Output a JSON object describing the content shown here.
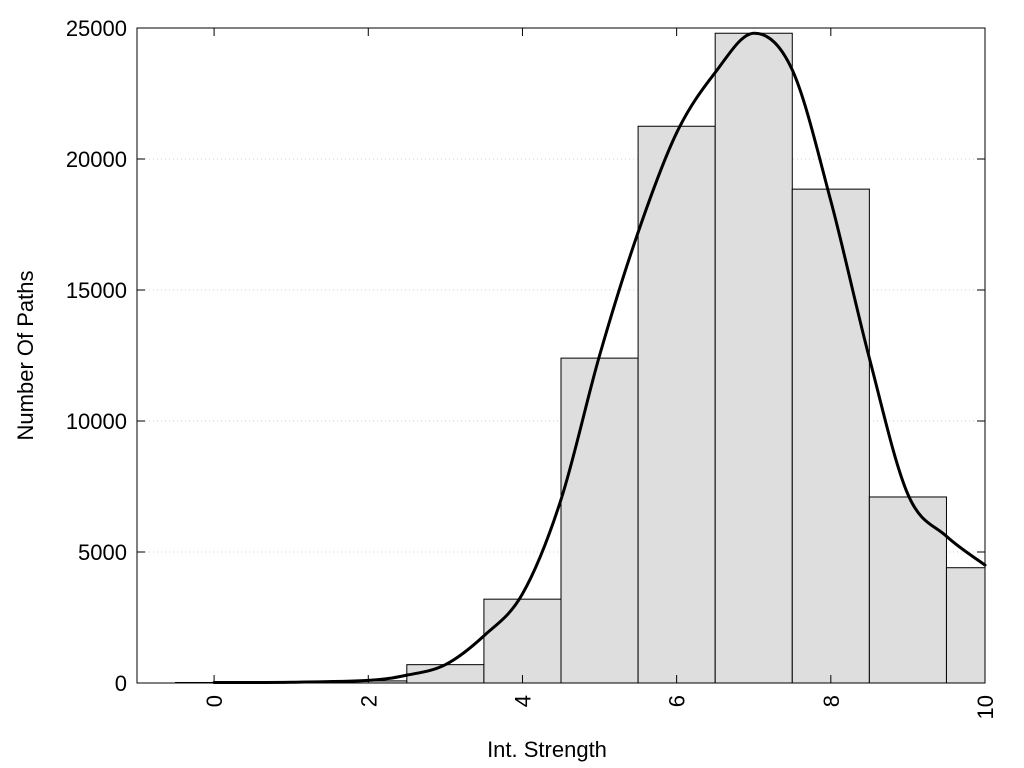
{
  "chart_data": {
    "type": "bar",
    "xlabel": "Int. Strength",
    "ylabel": "Number Of Paths",
    "xlim": [
      -1,
      10
    ],
    "ylim": [
      0,
      25000
    ],
    "x_ticks": [
      0,
      2,
      4,
      6,
      8,
      10
    ],
    "y_ticks": [
      0,
      5000,
      10000,
      15000,
      20000,
      25000
    ],
    "grid": "horizontal dotted",
    "legend": "none",
    "bin_width": 1,
    "bins": [
      0,
      1,
      2,
      3,
      4,
      5,
      6,
      7,
      8,
      9,
      10
    ],
    "values": [
      20,
      40,
      80,
      700,
      3200,
      12400,
      21250,
      24800,
      18850,
      7100,
      4400
    ],
    "density_curve": {
      "x": [
        0,
        1,
        2,
        2.5,
        3,
        3.5,
        4,
        4.5,
        5,
        5.5,
        6,
        6.5,
        7,
        7.5,
        8,
        8.5,
        9,
        9.5,
        10
      ],
      "y": [
        20,
        30,
        100,
        300,
        700,
        1800,
        3400,
        7000,
        12500,
        17200,
        21000,
        23300,
        24800,
        23400,
        18400,
        12400,
        7200,
        5600,
        4500
      ]
    },
    "colors": {
      "bar_fill": "#dedede",
      "bar_stroke": "#000000",
      "curve": "#000000"
    }
  }
}
